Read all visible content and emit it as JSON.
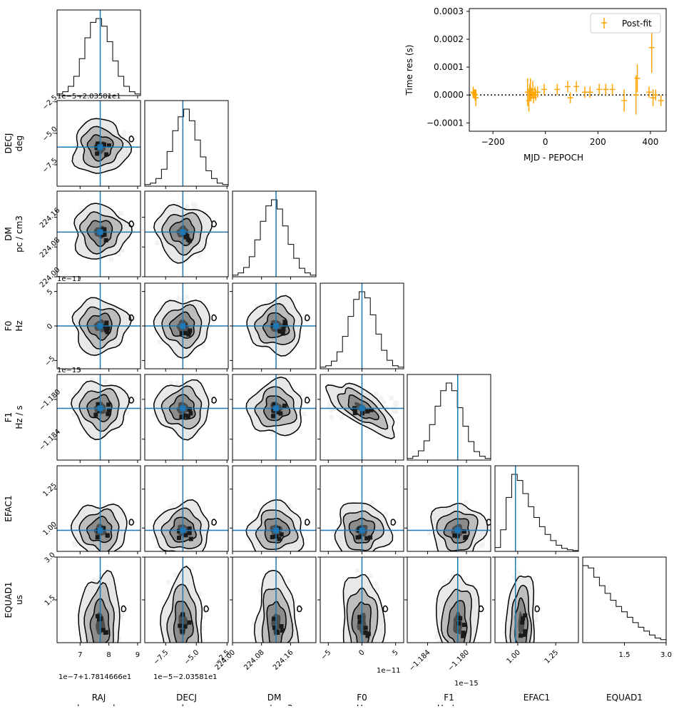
{
  "chart_data": [
    {
      "type": "corner",
      "parameters": [
        {
          "key": "RAJ",
          "label": "RAJ",
          "unit": "hourangle",
          "truth": 7.7,
          "range": [
            6.2,
            9.1
          ],
          "ticks": [
            "7",
            "8",
            "9"
          ],
          "tick_values": [
            7,
            8,
            9
          ],
          "offset": "1e−7+1.7814666e1",
          "offset_pos": "bottom",
          "hist": [
            0.02,
            0.05,
            0.12,
            0.25,
            0.48,
            0.75,
            0.95,
            1.0,
            0.9,
            0.7,
            0.45,
            0.25,
            0.12,
            0.05,
            0.02
          ]
        },
        {
          "key": "DECJ",
          "label": "DECJ",
          "unit": "deg",
          "truth": -6.1,
          "range": [
            -9.2,
            -2.4
          ],
          "ticks": [
            "−7.5",
            "−5.0",
            "−2.5"
          ],
          "tick_values": [
            -7.5,
            -5.0,
            -2.5
          ],
          "offset": "1e−5−2.03581e1",
          "offset_pos": "top",
          "hist": [
            0.02,
            0.04,
            0.1,
            0.22,
            0.45,
            0.72,
            0.9,
            1.0,
            0.85,
            0.6,
            0.38,
            0.2,
            0.1,
            0.04,
            0.02
          ]
        },
        {
          "key": "DM",
          "label": "DM",
          "unit": "pc / cm3",
          "truth": 224.12,
          "range": [
            224.0,
            224.23
          ],
          "ticks": [
            "224.00",
            "224.08",
            "224.16"
          ],
          "tick_values": [
            224.0,
            224.08,
            224.16
          ],
          "offset": "",
          "offset_pos": "",
          "hist": [
            0.02,
            0.05,
            0.12,
            0.26,
            0.48,
            0.72,
            0.92,
            1.0,
            0.88,
            0.66,
            0.42,
            0.24,
            0.11,
            0.05,
            0.02
          ]
        },
        {
          "key": "F0",
          "label": "F0",
          "unit": "Hz",
          "truth": 0.0,
          "range": [
            -6.2,
            6.2
          ],
          "ticks": [
            "−5",
            "0",
            "5"
          ],
          "tick_values": [
            -5,
            0,
            5
          ],
          "offset": "1e−11",
          "offset_pos": "top",
          "hist": [
            0.02,
            0.04,
            0.1,
            0.22,
            0.42,
            0.68,
            0.9,
            1.0,
            0.92,
            0.7,
            0.45,
            0.24,
            0.11,
            0.04,
            0.02
          ]
        },
        {
          "key": "F1",
          "label": "F1",
          "unit": "Hz / s",
          "truth": -1.1809,
          "range": [
            -1.1861,
            -1.1775
          ],
          "ticks": [
            "−1.184",
            "−1.180"
          ],
          "tick_values": [
            -1.184,
            -1.18
          ],
          "offset": "1e−15",
          "offset_pos": "top",
          "hist": [
            0.02,
            0.05,
            0.12,
            0.25,
            0.46,
            0.7,
            0.9,
            1.0,
            0.9,
            0.68,
            0.44,
            0.24,
            0.11,
            0.05,
            0.02
          ]
        },
        {
          "key": "EFAC1",
          "label": "EFAC1",
          "unit": "",
          "truth": 0.985,
          "range": [
            0.85,
            1.4
          ],
          "ticks": [
            "1.00",
            "1.25"
          ],
          "tick_values": [
            1.0,
            1.25
          ],
          "offset": "",
          "offset_pos": "",
          "hist": [
            0.05,
            0.28,
            0.7,
            1.0,
            0.92,
            0.75,
            0.58,
            0.44,
            0.32,
            0.22,
            0.14,
            0.08,
            0.04,
            0.02,
            0.01
          ]
        },
        {
          "key": "EQUAD1",
          "label": "EQUAD1",
          "unit": "us",
          "truth": null,
          "range": [
            0.0,
            3.0
          ],
          "ticks": [
            "1.5",
            "3.0"
          ],
          "tick_values": [
            1.5,
            3.0
          ],
          "offset": "",
          "offset_pos": "",
          "hist": [
            1.0,
            0.97,
            0.85,
            0.74,
            0.64,
            0.55,
            0.47,
            0.4,
            0.33,
            0.26,
            0.2,
            0.15,
            0.1,
            0.06,
            0.04
          ]
        }
      ],
      "correlations": {
        "F0-F1": -0.75
      }
    },
    {
      "type": "scatter",
      "title": "",
      "xlabel": "MJD - PEPOCH",
      "ylabel": "Time res (s)",
      "xlim": [
        -290,
        460
      ],
      "ylim": [
        -0.00013,
        0.00031
      ],
      "xticks": [
        -200,
        0,
        200,
        400
      ],
      "xtick_labels": [
        "−200",
        "0",
        "200",
        "400"
      ],
      "yticks": [
        -0.0001,
        0.0,
        0.0001,
        0.0002,
        0.0003
      ],
      "ytick_labels": [
        "−0.0001",
        "0.0000",
        "0.0001",
        "0.0002",
        "0.0003"
      ],
      "zero_line": true,
      "legend": {
        "label": "Post-fit",
        "position": "top-right"
      },
      "color": "#ffa500",
      "series": [
        {
          "name": "Post-fit",
          "x": [
            -275,
            -272,
            -268,
            -265,
            -68,
            -63,
            -60,
            -57,
            -52,
            -48,
            -45,
            -40,
            -37,
            -30,
            -5,
            45,
            85,
            95,
            118,
            150,
            170,
            205,
            230,
            255,
            300,
            345,
            350,
            395,
            405,
            410,
            420,
            440
          ],
          "y": [
            1e-05,
            5e-06,
            0.0,
            -1e-05,
            1e-05,
            -2e-05,
            1e-05,
            2e-05,
            5e-06,
            2e-05,
            -1e-05,
            1e-05,
            0.0,
            1e-05,
            2e-05,
            2e-05,
            3e-05,
            -1e-05,
            3e-05,
            1e-05,
            1e-05,
            2e-05,
            2e-05,
            2e-05,
            -2e-05,
            0.0,
            6e-05,
            1e-05,
            0.00017,
            -1e-05,
            0.0,
            -2e-05
          ],
          "err": [
            2e-05,
            1.5e-05,
            2e-05,
            3e-05,
            5e-05,
            4e-05,
            3e-05,
            4e-05,
            2e-05,
            3e-05,
            2e-05,
            2e-05,
            2e-05,
            2e-05,
            2e-05,
            2e-05,
            2e-05,
            2e-05,
            2e-05,
            2e-05,
            2e-05,
            2e-05,
            2e-05,
            2e-05,
            4e-05,
            7e-05,
            5e-05,
            2e-05,
            9e-05,
            3e-05,
            2e-05,
            2e-05
          ]
        }
      ]
    }
  ]
}
